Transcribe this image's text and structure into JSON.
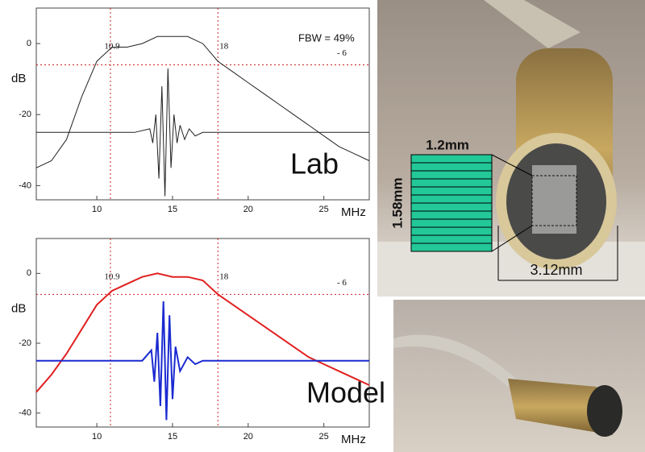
{
  "chart_data": [
    {
      "type": "line",
      "ylabel": "dB",
      "xlabel": "MHz",
      "xlim": [
        6,
        28
      ],
      "xticks": [
        10,
        15,
        20,
        25
      ],
      "ylim": [
        -44,
        10
      ],
      "yticks": [
        0,
        -20,
        -40
      ],
      "vlines": [
        {
          "value": 10.9,
          "label": "10.9"
        },
        {
          "value": 18,
          "label": "18"
        }
      ],
      "hline": {
        "value": -6,
        "label": "- 6"
      },
      "annotations": [
        "FBW = 49%",
        "Lab"
      ],
      "series": [
        {
          "color": "#222222",
          "x": [
            6,
            7,
            8,
            9,
            10,
            11,
            12,
            13,
            14,
            15,
            16,
            17,
            18,
            19,
            20,
            21,
            22,
            23,
            24,
            25,
            26,
            27,
            28
          ],
          "values": [
            -35,
            -33,
            -27,
            -15,
            -5,
            -1,
            -1,
            0,
            2,
            2,
            2,
            0,
            -5,
            -8,
            -11,
            -14,
            -17,
            -20,
            -23,
            -26,
            -29,
            -31,
            -33
          ]
        },
        {
          "color": "#222222",
          "x": [
            6,
            12.5,
            13.5,
            13.7,
            13.9,
            14.1,
            14.3,
            14.5,
            14.7,
            14.9,
            15.1,
            15.3,
            15.5,
            15.8,
            16.1,
            16.5,
            17,
            28
          ],
          "values": [
            -25,
            -25,
            -24,
            -28,
            -20,
            -38,
            -12,
            -43,
            -7,
            -35,
            -20,
            -28,
            -23,
            -27,
            -24,
            -26,
            -25,
            -25
          ]
        }
      ]
    },
    {
      "type": "line",
      "ylabel": "dB",
      "xlabel": "MHz",
      "xlim": [
        6,
        28
      ],
      "xticks": [
        10,
        15,
        20,
        25
      ],
      "ylim": [
        -44,
        10
      ],
      "yticks": [
        0,
        -20,
        -40
      ],
      "vlines": [
        {
          "value": 10.9,
          "label": "10.9"
        },
        {
          "value": 18,
          "label": "18"
        }
      ],
      "hline": {
        "value": -6,
        "label": "- 6"
      },
      "annotations": [
        "Model"
      ],
      "series": [
        {
          "color": "#e02020",
          "x": [
            6,
            7,
            8,
            9,
            10,
            11,
            12,
            13,
            14,
            15,
            16,
            17,
            18,
            19,
            20,
            21,
            22,
            23,
            24,
            25,
            26,
            27,
            28
          ],
          "values": [
            -34,
            -29,
            -23,
            -16,
            -9,
            -5,
            -3,
            -1,
            0,
            -1,
            -1,
            -2,
            -6,
            -9,
            -12,
            -15,
            -18,
            -21,
            -24,
            -26,
            -28,
            -30,
            -32
          ]
        },
        {
          "color": "#1a2ad0",
          "x": [
            6,
            13,
            13.6,
            13.8,
            14,
            14.2,
            14.4,
            14.6,
            14.8,
            15,
            15.2,
            15.5,
            16,
            16.5,
            17,
            28
          ],
          "values": [
            -25,
            -25,
            -22,
            -31,
            -17,
            -38,
            -8,
            -42,
            -12,
            -36,
            -21,
            -28,
            -24,
            -26,
            -25,
            -25
          ]
        }
      ]
    }
  ],
  "photo": {
    "width_label": "1.2mm",
    "height_label": "1.58mm",
    "diameter_label": "3.12mm"
  }
}
